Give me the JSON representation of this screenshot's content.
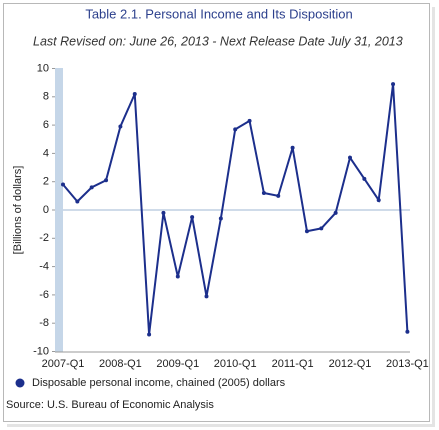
{
  "chart_data": {
    "type": "line",
    "title": "Table 2.1. Personal Income and Its Disposition",
    "subtitle": "Last Revised on: June 26, 2013 - Next Release Date July 31, 2013",
    "y_label": "[Billions of dollars]",
    "source": "Source: U.S. Bureau of Economic Analysis",
    "categories": [
      "2007-Q1",
      null,
      null,
      null,
      "2008-Q1",
      null,
      null,
      null,
      "2009-Q1",
      null,
      null,
      null,
      "2010-Q1",
      null,
      null,
      null,
      "2011-Q1",
      null,
      null,
      null,
      "2012-Q1",
      null,
      null,
      null,
      "2013-Q1"
    ],
    "series": [
      {
        "name": "Disposable personal income, chained (2005) dollars",
        "color": "#1c2f8c",
        "values": [
          1.8,
          0.6,
          1.6,
          2.1,
          5.9,
          8.2,
          -8.8,
          -0.2,
          -4.7,
          -0.5,
          -6.1,
          -0.6,
          5.7,
          6.3,
          1.2,
          1.0,
          4.4,
          -1.5,
          -1.3,
          -0.2,
          3.7,
          2.2,
          0.7,
          8.9,
          -8.6
        ]
      }
    ],
    "ylim": [
      -10,
      10
    ],
    "yticks": [
      -10,
      -8,
      -6,
      -4,
      -2,
      0,
      2,
      4,
      6,
      8,
      10
    ],
    "grid": false
  }
}
